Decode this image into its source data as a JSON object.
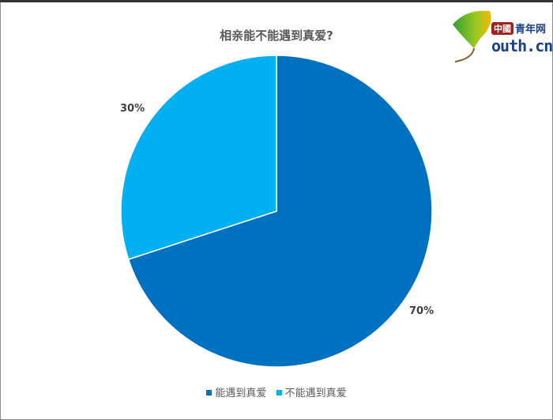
{
  "logo": {
    "text": "中國青年网 youth.cn",
    "cn": "中國",
    "qn": "青年网",
    "youth": "outh.cn"
  },
  "chart_data": {
    "type": "pie",
    "title": "相亲能不能遇到真爱?",
    "categories": [
      "能遇到真爱",
      "不能遇到真爱"
    ],
    "values": [
      70,
      30
    ],
    "labels": [
      "70%",
      "30%"
    ],
    "colors": [
      "#0070c0",
      "#00b0f0"
    ],
    "legend": "bottom"
  }
}
